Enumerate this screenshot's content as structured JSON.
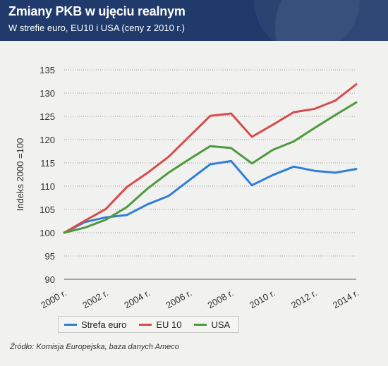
{
  "header": {
    "title": "Zmiany PKB w ujęciu realnym",
    "subtitle": "W strefie euro, EU10 i USA (ceny z 2010 r.)"
  },
  "footer": {
    "source": "Źródło: Komisja Europejska, baza danych Ameco"
  },
  "chart_data": {
    "type": "line",
    "ylabel": "Indeks 2000 =100",
    "ylim": [
      90,
      135
    ],
    "yticks": [
      90,
      95,
      100,
      105,
      110,
      115,
      120,
      125,
      130,
      135
    ],
    "xlim": [
      2000,
      2014
    ],
    "xticks": [
      "2000 r.",
      "2002 r.",
      "2004 r.",
      "2006 r.",
      "2008 r.",
      "2010 r.",
      "2012 r.",
      "2014 r."
    ],
    "x": [
      2000,
      2001,
      2002,
      2003,
      2004,
      2005,
      2006,
      2007,
      2008,
      2009,
      2010,
      2011,
      2012,
      2013,
      2014
    ],
    "grid": true,
    "legend_position": "bottom",
    "series": [
      {
        "name": "Strefa euro",
        "color": "#2f7ed8",
        "values": [
          100,
          102.3,
          103.3,
          103.8,
          106.1,
          107.9,
          111.3,
          114.7,
          115.4,
          110.2,
          112.4,
          114.2,
          113.3,
          112.9,
          113.7
        ]
      },
      {
        "name": "EU 10",
        "color": "#d94b4b",
        "values": [
          100,
          102.6,
          105.1,
          109.8,
          112.9,
          116.3,
          120.7,
          125.1,
          125.6,
          120.6,
          123.2,
          125.9,
          126.6,
          128.4,
          131.9
        ]
      },
      {
        "name": "USA",
        "color": "#4e9a3c",
        "values": [
          100,
          101.1,
          102.8,
          105.5,
          109.5,
          112.9,
          115.8,
          118.6,
          118.2,
          114.9,
          117.8,
          119.6,
          122.5,
          125.3,
          128
        ]
      }
    ]
  }
}
